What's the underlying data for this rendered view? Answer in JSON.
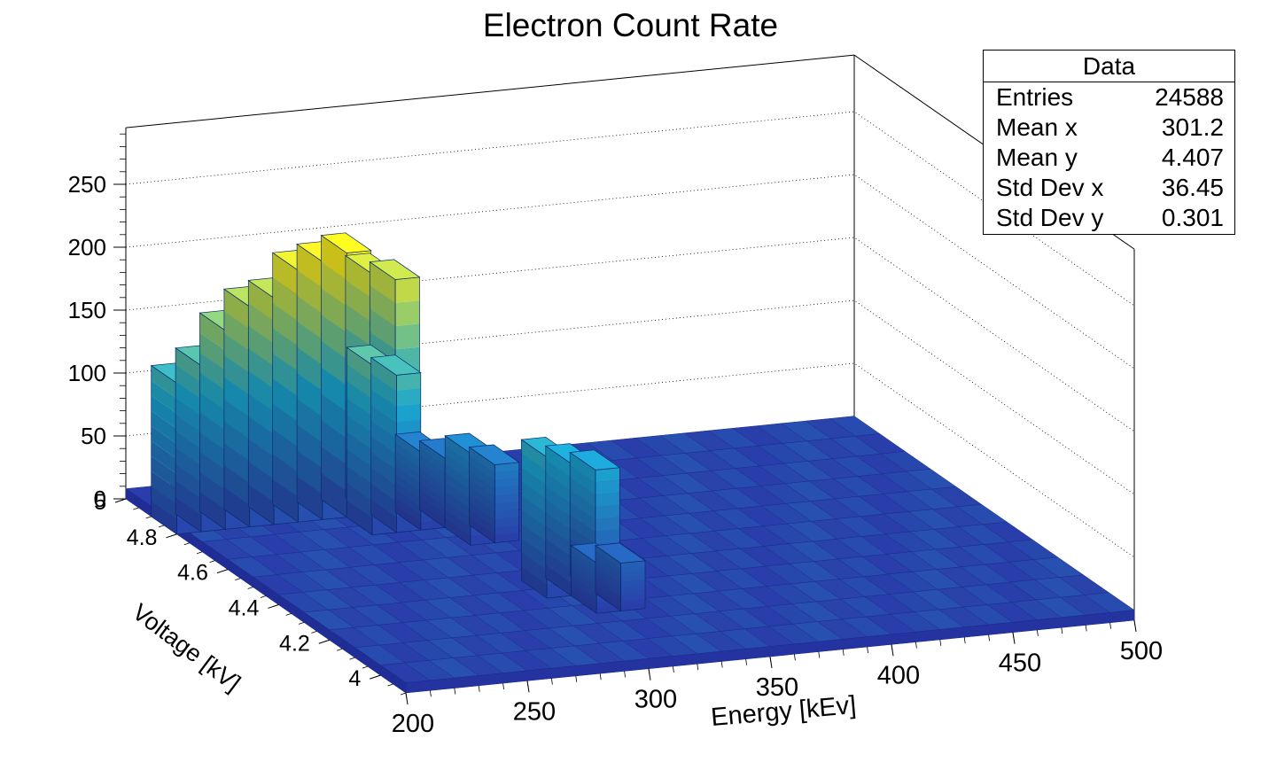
{
  "chart_data": {
    "type": "lego3d",
    "title": "Electron Count Rate",
    "xlabel": "Energy [kEv]",
    "ylabel": "Voltage [kV]",
    "xlim": [
      200,
      500
    ],
    "ylim": [
      3.9,
      5.0
    ],
    "zlim": [
      0,
      295
    ],
    "x_ticks": [
      "200",
      "250",
      "300",
      "350",
      "400",
      "450",
      "500"
    ],
    "y_ticks": [
      "4",
      "4.2",
      "4.4",
      "4.6",
      "4.8",
      "5"
    ],
    "z_ticks": [
      "0",
      "50",
      "100",
      "150",
      "200",
      "250"
    ],
    "x_bin_width": 10,
    "y_bin_width": 0.1,
    "background_level": 8,
    "peak_bins": [
      {
        "x": 210,
        "y": 4.9,
        "z": 120
      },
      {
        "x": 220,
        "y": 4.9,
        "z": 132
      },
      {
        "x": 230,
        "y": 4.9,
        "z": 158
      },
      {
        "x": 240,
        "y": 4.9,
        "z": 175
      },
      {
        "x": 250,
        "y": 4.9,
        "z": 180
      },
      {
        "x": 260,
        "y": 4.9,
        "z": 200
      },
      {
        "x": 270,
        "y": 4.9,
        "z": 205
      },
      {
        "x": 280,
        "y": 4.9,
        "z": 210
      },
      {
        "x": 290,
        "y": 4.9,
        "z": 192
      },
      {
        "x": 300,
        "y": 4.9,
        "z": 185
      },
      {
        "x": 280,
        "y": 4.8,
        "z": 135
      },
      {
        "x": 290,
        "y": 4.8,
        "z": 125
      },
      {
        "x": 300,
        "y": 4.8,
        "z": 62
      },
      {
        "x": 310,
        "y": 4.8,
        "z": 55
      },
      {
        "x": 310,
        "y": 4.7,
        "z": 73
      },
      {
        "x": 320,
        "y": 4.7,
        "z": 62
      },
      {
        "x": 310,
        "y": 4.4,
        "z": 112
      },
      {
        "x": 320,
        "y": 4.4,
        "z": 105
      },
      {
        "x": 330,
        "y": 4.4,
        "z": 98
      },
      {
        "x": 320,
        "y": 4.3,
        "z": 40
      },
      {
        "x": 330,
        "y": 4.3,
        "z": 38
      }
    ],
    "stats": {
      "header": "Data",
      "rows": [
        {
          "label": "Entries",
          "value": "24588"
        },
        {
          "label": "Mean x",
          "value": "301.2"
        },
        {
          "label": "Mean y",
          "value": "4.407"
        },
        {
          "label": "Std Dev x",
          "value": "36.45"
        },
        {
          "label": "Std Dev y",
          "value": "0.301"
        }
      ]
    },
    "colors": {
      "low": "#2a3aa8",
      "mid": "#1aa6d0",
      "high": "#f5e91f"
    }
  }
}
